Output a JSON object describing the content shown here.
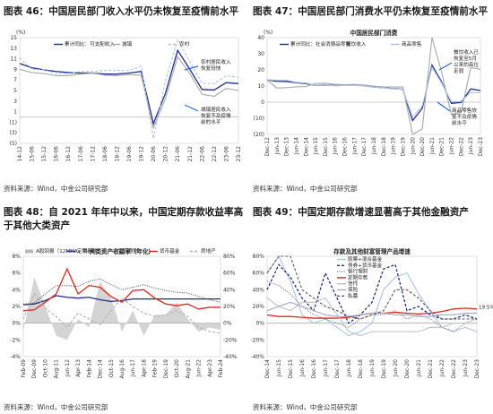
{
  "figures": [
    {
      "id": "fig46",
      "title": "图表 46：中国居民部门收入水平仍未恢复至疫情前水平",
      "source": "资料来源：Wind，中金公司研究部",
      "chart_data": {
        "type": "line",
        "unit_label": "(%)",
        "y_ticks": [
          15,
          13,
          11,
          9,
          7,
          5,
          3,
          1,
          -1,
          -3,
          -5
        ],
        "y_tick_labels": [
          "15",
          "13",
          "11",
          "9",
          "7",
          "5",
          "3",
          "1",
          "(1)",
          "(3)",
          "(5)"
        ],
        "ylim": [
          -5,
          15
        ],
        "x_tick_labels": [
          "14-12",
          "15-06",
          "15-12",
          "16-06",
          "16-12",
          "17-06",
          "17-12",
          "18-06",
          "18-12",
          "19-06",
          "19-12",
          "20-06",
          "20-12",
          "21-06",
          "21-12",
          "22-06",
          "22-12",
          "23-06",
          "23-12"
        ],
        "series": [
          {
            "name": "累计同比：可支配收入",
            "color": "#1f2d8a",
            "style": "solid",
            "values": [
              10.1,
              9.3,
              8.9,
              8.6,
              8.4,
              8.3,
              8.3,
              8.1,
              8.1,
              8.3,
              8.6,
              -1.3,
              4.5,
              12.6,
              9.0,
              5.2,
              5.1,
              6.5,
              6.3
            ]
          },
          {
            "name": "城镇",
            "color": "#a8a8a8",
            "style": "solid",
            "values": [
              9.0,
              8.4,
              8.2,
              7.8,
              7.8,
              8.1,
              8.3,
              7.9,
              7.8,
              8.0,
              7.9,
              -2.1,
              3.5,
              11.4,
              8.2,
              4.3,
              3.9,
              5.4,
              5.0
            ]
          },
          {
            "name": "农村",
            "color": "#a9c6ea",
            "style": "dashed",
            "values": [
              11.2,
              9.0,
              8.9,
              8.2,
              8.2,
              8.6,
              8.6,
              8.8,
              8.8,
              8.8,
              9.6,
              -4.1,
              6.9,
              14.6,
              10.5,
              6.4,
              6.3,
              7.8,
              7.5
            ]
          }
        ],
        "annotations": [
          "农村居民收入恢复较快",
          "城镇居民收入恢复不及疫情前的水平"
        ]
      }
    },
    {
      "id": "fig47",
      "title": "图表 47：中国居民部门消费水平仍未恢复至疫情前水平",
      "source": "资料来源：Wind，中金公司研究部",
      "chart_data": {
        "type": "line",
        "subtitle": "中国居民部门消费",
        "unit_label": "(%)",
        "y_ticks": [
          40,
          30,
          20,
          10,
          0,
          -10,
          -20
        ],
        "y_tick_labels": [
          "40",
          "30",
          "20",
          "10",
          "0",
          "(10)",
          "(20)"
        ],
        "ylim": [
          -20,
          40
        ],
        "x_tick_labels": [
          "Dec-12",
          "Jun-13",
          "Dec-13",
          "Jun-14",
          "Dec-14",
          "Jun-15",
          "Dec-15",
          "Jun-16",
          "Dec-16",
          "Jun-17",
          "Dec-17",
          "Jun-18",
          "Dec-18",
          "Jun-19",
          "Dec-19",
          "Jun-20",
          "Dec-20",
          "Jun-21",
          "Dec-21",
          "Jun-22",
          "Dec-22",
          "Jun-23",
          "Dec-23"
        ],
        "series": [
          {
            "name": "累计同比：社会消费品零售",
            "color": "#1f2d8a",
            "style": "solid",
            "values": [
              13.8,
              12.9,
              12.8,
              12.1,
              11.5,
              10.5,
              10.6,
              10.3,
              10.4,
              10.4,
              10.2,
              9.4,
              9.0,
              8.4,
              8.0,
              -11.4,
              -3.9,
              23.0,
              12.5,
              -0.7,
              -0.2,
              8.2,
              7.2
            ]
          },
          {
            "name": "餐饮收入",
            "color": "#a8a8a8",
            "style": "solid",
            "values": [
              13.6,
              8.8,
              9.0,
              9.5,
              9.7,
              11.6,
              11.7,
              11.1,
              10.8,
              11.0,
              10.7,
              9.9,
              9.5,
              9.4,
              9.4,
              -32.8,
              -16.6,
              40.0,
              18.6,
              -7.7,
              -6.3,
              21.4,
              20.4
            ]
          },
          {
            "name": "商品零售",
            "color": "#a9c6ea",
            "style": "solid",
            "values": [
              13.9,
              13.6,
              13.6,
              12.3,
              11.8,
              10.6,
              10.6,
              10.2,
              10.4,
              10.3,
              10.2,
              9.3,
              8.9,
              8.3,
              7.9,
              -9.2,
              -2.3,
              21.6,
              11.8,
              0.3,
              0.5,
              6.1,
              5.8
            ]
          }
        ],
        "annotations": [
          "餐饮收入已恢复至5月以来的高位走弱",
          "商品零售恢复不及疫情前水平"
        ]
      }
    },
    {
      "id": "fig48",
      "title": "图表 48：自 2021 年年中以来，中国定期存款收益率高于其他大类资产",
      "source": "资料来源：Wind，中金公司研究部",
      "chart_data": {
        "type": "line",
        "subtitle": "大类资产收益率（年化）",
        "y_left_ticks": [
          8,
          6,
          4,
          2,
          0,
          -2,
          -4
        ],
        "y_left_tick_labels": [
          "8%",
          "6%",
          "4%",
          "2%",
          "0%",
          "-2%",
          "-4%"
        ],
        "y_right_ticks": [
          80,
          60,
          40,
          20,
          0,
          -20,
          -40
        ],
        "y_right_tick_labels": [
          "80%",
          "60%",
          "40%",
          "20%",
          "0%",
          "-20%",
          "-40%"
        ],
        "ylim_left": [
          -4,
          8
        ],
        "ylim_right": [
          -40,
          80
        ],
        "x_tick_labels": [
          "Feb-09",
          "Dec-09",
          "Oct-10",
          "Aug-11",
          "Jun-12",
          "Apr-13",
          "Feb-14",
          "Dec-14",
          "Oct-15",
          "Aug-16",
          "Jun-17",
          "Apr-18",
          "Feb-19",
          "Dec-19",
          "Oct-20",
          "Aug-21",
          "Jun-22",
          "Apr-23",
          "Feb-24"
        ],
        "series": [
          {
            "name": "A股回报（12MMA，右轴）",
            "color": "#b8b8b8",
            "style": "area",
            "axis": "right",
            "values": [
              -10,
              55,
              20,
              -15,
              -20,
              5,
              -5,
              50,
              30,
              -10,
              15,
              -15,
              10,
              10,
              25,
              5,
              -10,
              -5,
              -8
            ]
          },
          {
            "name": "定期存款",
            "color": "#1f2d8a",
            "style": "solid",
            "axis": "left",
            "values": [
              2.2,
              2.3,
              2.7,
              3.3,
              3.1,
              3.0,
              3.1,
              2.8,
              2.6,
              2.7,
              2.9,
              2.9,
              2.9,
              2.9,
              2.9,
              2.9,
              2.9,
              2.9,
              2.9
            ]
          },
          {
            "name": "银行理财",
            "color": "#555555",
            "style": "dotted",
            "axis": "left",
            "values": [
              2.3,
              2.4,
              3.5,
              4.5,
              4.5,
              4.4,
              5.0,
              5.3,
              4.6,
              4.0,
              4.3,
              4.6,
              4.2,
              3.9,
              3.7,
              3.6,
              3.2,
              2.8,
              2.5
            ]
          },
          {
            "name": "货币基金",
            "color": "#d9281f",
            "style": "solid",
            "axis": "left",
            "values": [
              1.5,
              1.6,
              2.5,
              3.5,
              6.5,
              3.5,
              4.5,
              4.3,
              3.2,
              2.5,
              3.9,
              4.0,
              3.0,
              2.3,
              2.1,
              2.3,
              1.7,
              1.9,
              1.9
            ]
          },
          {
            "name": "房地产",
            "color": "#b0b0b0",
            "style": "dashed",
            "axis": "right",
            "values": [
              5,
              35,
              18,
              8,
              -5,
              12,
              5,
              -2,
              15,
              30,
              20,
              12,
              8,
              10,
              15,
              8,
              -5,
              -10,
              -12
            ]
          }
        ]
      }
    },
    {
      "id": "fig49",
      "title": "图表 49：中国定期存款增速显著高于其他金融资产",
      "source": "资料来源：Wind，中金公司研究部",
      "chart_data": {
        "type": "line",
        "subtitle": "存款及其他财富管理产品增速",
        "y_ticks": [
          80,
          60,
          40,
          20,
          0,
          -20,
          -40
        ],
        "y_tick_labels": [
          "80%",
          "60%",
          "40%",
          "20%",
          "0%",
          "-20%",
          "-40%"
        ],
        "ylim": [
          -40,
          80
        ],
        "x_tick_labels": [
          "Dec-14",
          "Jun-15",
          "Dec-15",
          "Jun-16",
          "Dec-16",
          "Jun-17",
          "Dec-17",
          "Jun-18",
          "Dec-18",
          "Jun-19",
          "Dec-19",
          "Jun-20",
          "Dec-20",
          "Jun-21",
          "Dec-21",
          "Jun-22",
          "Dec-22",
          "Jun-23",
          "Dec-23"
        ],
        "series": [
          {
            "name": "股票+混合基金",
            "color": "#a9c6ea",
            "style": "solid",
            "values": [
              60,
              80,
              50,
              10,
              0,
              5,
              -5,
              -15,
              -10,
              0,
              40,
              55,
              60,
              35,
              15,
              -5,
              -10,
              -5,
              -10
            ]
          },
          {
            "name": "债券+货币基金",
            "color": "#1f2d8a",
            "style": "dashed",
            "values": [
              40,
              70,
              55,
              30,
              15,
              60,
              30,
              0,
              10,
              25,
              65,
              70,
              15,
              20,
              10,
              5,
              5,
              10,
              5
            ]
          },
          {
            "name": "银行理财",
            "color": "#777777",
            "style": "dotted",
            "values": [
              50,
              45,
              35,
              20,
              10,
              5,
              0,
              -5,
              5,
              10,
              10,
              15,
              5,
              10,
              5,
              -5,
              -10,
              0,
              5
            ]
          },
          {
            "name": "定期存款",
            "color": "#d9281f",
            "style": "solid",
            "values": [
              10,
              8,
              8,
              7,
              6,
              6,
              6,
              7,
              10,
              12,
              12,
              13,
              12,
              11,
              12,
              14,
              17,
              18,
              17
            ]
          },
          {
            "name": "信托",
            "color": "#c0c0c0",
            "style": "solid",
            "values": [
              30,
              20,
              15,
              25,
              25,
              30,
              10,
              -10,
              -15,
              -10,
              -10,
              -10,
              -10,
              -10,
              -5,
              -5,
              0,
              0,
              0
            ]
          },
          {
            "name": "保险",
            "color": "#9aa9c8",
            "style": "solid",
            "values": [
              15,
              20,
              25,
              20,
              15,
              10,
              8,
              8,
              10,
              12,
              12,
              10,
              10,
              8,
              8,
              10,
              10,
              12,
              12
            ]
          },
          {
            "name": "私募",
            "color": "#5a5a5a",
            "style": "dashed",
            "values": [
              60,
              120,
              80,
              40,
              30,
              20,
              15,
              8,
              5,
              10,
              15,
              40,
              40,
              30,
              15,
              5,
              5,
              5,
              5
            ]
          }
        ],
        "end_labels": [
          "19.5%"
        ]
      }
    }
  ]
}
